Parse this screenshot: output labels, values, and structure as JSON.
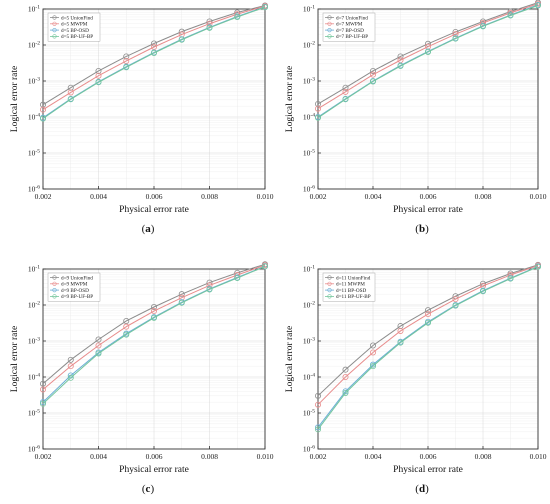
{
  "chart_data": [
    {
      "type": "line",
      "caption_letter": "a",
      "caption_paren_open": "(",
      "caption_paren_close": ")",
      "xlabel": "Physical error rate",
      "ylabel": "Logical error rate",
      "xlim": [
        0.002,
        0.01
      ],
      "ylim_exp": [
        -6,
        -1
      ],
      "yscale": "log",
      "x_ticks": [
        "0.002",
        "0.004",
        "0.006",
        "0.008",
        "0.010"
      ],
      "y_ticks": [
        {
          "base": "10",
          "exp": "-6"
        },
        {
          "base": "10",
          "exp": "-5"
        },
        {
          "base": "10",
          "exp": "-4"
        },
        {
          "base": "10",
          "exp": "-3"
        },
        {
          "base": "10",
          "exp": "-2"
        },
        {
          "base": "10",
          "exp": "-1"
        }
      ],
      "grid": true,
      "legend_position": "top-left",
      "x": [
        0.002,
        0.003,
        0.004,
        0.005,
        0.006,
        0.007,
        0.008,
        0.009,
        0.01
      ],
      "series": [
        {
          "name": "d=5 UnionFind",
          "color": "#8c8c8c",
          "values": [
            0.00022,
            0.00065,
            0.0019,
            0.0048,
            0.011,
            0.0235,
            0.045,
            0.08,
            0.125
          ]
        },
        {
          "name": "d=5 MWPM",
          "color": "#e88c8c",
          "values": [
            0.00016,
            0.00048,
            0.0014,
            0.0036,
            0.0088,
            0.0195,
            0.039,
            0.072,
            0.12
          ]
        },
        {
          "name": "d=5 BP-OSD",
          "color": "#6baed6",
          "values": [
            9.5e-05,
            0.00032,
            0.00095,
            0.0025,
            0.0062,
            0.0145,
            0.031,
            0.062,
            0.115
          ]
        },
        {
          "name": "d=5 BP-UF-BP",
          "color": "#74c69d",
          "values": [
            9e-05,
            0.00031,
            0.00092,
            0.0024,
            0.006,
            0.014,
            0.03,
            0.06,
            0.112
          ]
        }
      ]
    },
    {
      "type": "line",
      "caption_letter": "b",
      "caption_paren_open": "(",
      "caption_paren_close": ")",
      "xlabel": "Physical error rate",
      "ylabel": "Logical error rate",
      "xlim": [
        0.002,
        0.01
      ],
      "ylim_exp": [
        -6,
        -1
      ],
      "yscale": "log",
      "x_ticks": [
        "0.002",
        "0.004",
        "0.006",
        "0.008",
        "0.010"
      ],
      "y_ticks": [
        {
          "base": "10",
          "exp": "-6"
        },
        {
          "base": "10",
          "exp": "-5"
        },
        {
          "base": "10",
          "exp": "-4"
        },
        {
          "base": "10",
          "exp": "-3"
        },
        {
          "base": "10",
          "exp": "-2"
        },
        {
          "base": "10",
          "exp": "-1"
        }
      ],
      "grid": true,
      "legend_position": "top-left",
      "x": [
        0.002,
        0.003,
        0.004,
        0.005,
        0.006,
        0.007,
        0.008,
        0.009,
        0.01
      ],
      "series": [
        {
          "name": "d=7 UnionFind",
          "color": "#8c8c8c",
          "values": [
            0.00023,
            0.00065,
            0.0019,
            0.0048,
            0.0108,
            0.023,
            0.045,
            0.085,
            0.15
          ]
        },
        {
          "name": "d=7 MWPM",
          "color": "#e88c8c",
          "values": [
            0.00017,
            0.0005,
            0.0015,
            0.0038,
            0.009,
            0.02,
            0.041,
            0.078,
            0.14
          ]
        },
        {
          "name": "d=7 BP-OSD",
          "color": "#6baed6",
          "values": [
            0.0001,
            0.00032,
            0.001,
            0.0027,
            0.0066,
            0.0155,
            0.034,
            0.068,
            0.13
          ]
        },
        {
          "name": "d=7 BP-UF-BP",
          "color": "#74c69d",
          "values": [
            9.5e-05,
            0.00031,
            0.00097,
            0.0026,
            0.0064,
            0.015,
            0.033,
            0.066,
            0.125
          ]
        }
      ]
    },
    {
      "type": "line",
      "caption_letter": "c",
      "caption_paren_open": "(",
      "caption_paren_close": ")",
      "xlabel": "Physical error rate",
      "ylabel": "Logical error rate",
      "xlim": [
        0.002,
        0.01
      ],
      "ylim_exp": [
        -6,
        -1
      ],
      "yscale": "log",
      "x_ticks": [
        "0.002",
        "0.004",
        "0.006",
        "0.008",
        "0.010"
      ],
      "y_ticks": [
        {
          "base": "10",
          "exp": "-6"
        },
        {
          "base": "10",
          "exp": "-5"
        },
        {
          "base": "10",
          "exp": "-4"
        },
        {
          "base": "10",
          "exp": "-3"
        },
        {
          "base": "10",
          "exp": "-2"
        },
        {
          "base": "10",
          "exp": "-1"
        }
      ],
      "grid": true,
      "legend_position": "top-left",
      "x": [
        0.002,
        0.003,
        0.004,
        0.005,
        0.006,
        0.007,
        0.008,
        0.009,
        0.01
      ],
      "series": [
        {
          "name": "d=9 UnionFind",
          "color": "#8c8c8c",
          "values": [
            6.5e-05,
            0.0003,
            0.0011,
            0.0036,
            0.0088,
            0.02,
            0.042,
            0.078,
            0.135
          ]
        },
        {
          "name": "d=9 MWPM",
          "color": "#e88c8c",
          "values": [
            4.5e-05,
            0.0002,
            0.00075,
            0.0025,
            0.0068,
            0.016,
            0.035,
            0.068,
            0.128
          ]
        },
        {
          "name": "d=9 BP-OSD",
          "color": "#6baed6",
          "values": [
            2e-05,
            0.00011,
            0.00048,
            0.0016,
            0.0046,
            0.012,
            0.028,
            0.058,
            0.12
          ]
        },
        {
          "name": "d=9 BP-UF-BP",
          "color": "#74c69d",
          "values": [
            1.8e-05,
            9.5e-05,
            0.00045,
            0.0015,
            0.0044,
            0.0115,
            0.027,
            0.056,
            0.118
          ]
        }
      ]
    },
    {
      "type": "line",
      "caption_letter": "d",
      "caption_paren_open": "(",
      "caption_paren_close": ")",
      "xlabel": "Physical error rate",
      "ylabel": "Logical error rate",
      "xlim": [
        0.002,
        0.01
      ],
      "ylim_exp": [
        -6,
        -1
      ],
      "yscale": "log",
      "x_ticks": [
        "0.002",
        "0.004",
        "0.006",
        "0.008",
        "0.010"
      ],
      "y_ticks": [
        {
          "base": "10",
          "exp": "-6"
        },
        {
          "base": "10",
          "exp": "-5"
        },
        {
          "base": "10",
          "exp": "-4"
        },
        {
          "base": "10",
          "exp": "-3"
        },
        {
          "base": "10",
          "exp": "-2"
        },
        {
          "base": "10",
          "exp": "-1"
        }
      ],
      "grid": true,
      "legend_position": "top-left",
      "x": [
        0.002,
        0.003,
        0.004,
        0.005,
        0.006,
        0.007,
        0.008,
        0.009,
        0.01
      ],
      "series": [
        {
          "name": "d=11 UnionFind",
          "color": "#8c8c8c",
          "values": [
            3e-05,
            0.00016,
            0.00075,
            0.0026,
            0.0072,
            0.0175,
            0.039,
            0.075,
            0.13
          ]
        },
        {
          "name": "d=11 MWPM",
          "color": "#e88c8c",
          "values": [
            1.7e-05,
            0.0001,
            0.00048,
            0.0019,
            0.0056,
            0.0145,
            0.034,
            0.068,
            0.125
          ]
        },
        {
          "name": "d=11 BP-OSD",
          "color": "#6baed6",
          "values": [
            4e-06,
            4e-05,
            0.00022,
            0.00095,
            0.0034,
            0.01,
            0.025,
            0.056,
            0.118
          ]
        },
        {
          "name": "d=11 BP-UF-BP",
          "color": "#74c69d",
          "values": [
            3.5e-06,
            3.6e-05,
            0.0002,
            0.0009,
            0.0032,
            0.0096,
            0.024,
            0.054,
            0.115
          ]
        }
      ]
    }
  ]
}
